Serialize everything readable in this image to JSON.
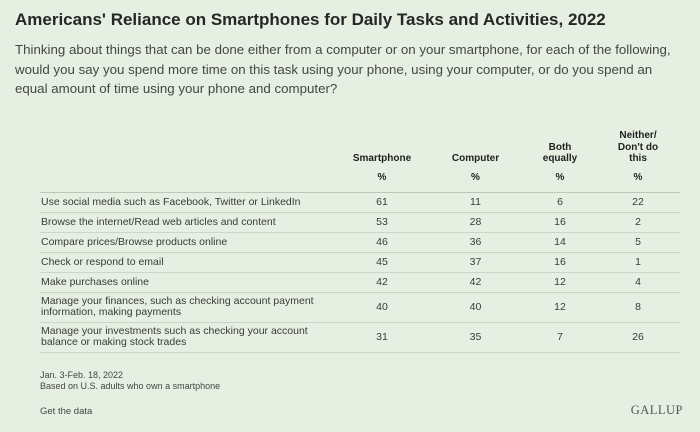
{
  "title": "Americans' Reliance on Smartphones for Daily Tasks and Activities, 2022",
  "question": "Thinking about things that can be done either from a computer or on your smartphone, for each of the following, would you say you spend more time on this task using your phone, using your computer, or do you spend an equal amount of time using your phone and computer?",
  "chart_data": {
    "type": "table",
    "columns": [
      "Smartphone",
      "Computer",
      "Both equally",
      "Neither/ Don't do this"
    ],
    "unit_label": "%",
    "rows": [
      {
        "label": "Use social media such as Facebook, Twitter or LinkedIn",
        "values": [
          61,
          11,
          6,
          22
        ]
      },
      {
        "label": "Browse the internet/Read web articles and content",
        "values": [
          53,
          28,
          16,
          2
        ]
      },
      {
        "label": "Compare prices/Browse products online",
        "values": [
          46,
          36,
          14,
          5
        ]
      },
      {
        "label": "Check or respond to email",
        "values": [
          45,
          37,
          16,
          1
        ]
      },
      {
        "label": "Make purchases online",
        "values": [
          42,
          42,
          12,
          4
        ]
      },
      {
        "label": "Manage your finances, such as checking account payment information, making payments",
        "values": [
          40,
          40,
          12,
          8
        ]
      },
      {
        "label": "Manage your investments such as checking your account balance or making stock trades",
        "values": [
          31,
          35,
          7,
          26
        ]
      }
    ]
  },
  "notes": {
    "dates": "Jan. 3-Feb. 18, 2022",
    "base": "Based on U.S. adults who own a smartphone"
  },
  "footer": {
    "get_data": "Get the data",
    "brand": "GALLUP"
  },
  "colors": {
    "background": "#e6f0e2",
    "text": "#333333"
  }
}
